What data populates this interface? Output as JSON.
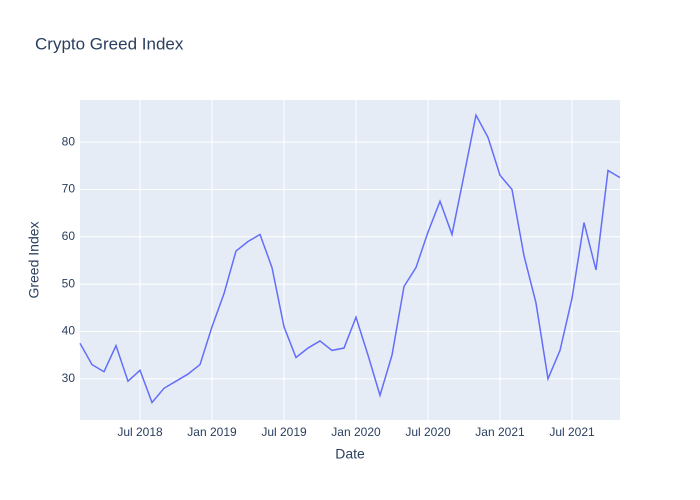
{
  "chart_data": {
    "type": "line",
    "title": "Crypto Greed Index",
    "x_label": "Date",
    "y_label": "Greed Index",
    "x": [
      "2018-02",
      "2018-03",
      "2018-04",
      "2018-05",
      "2018-06",
      "2018-07",
      "2018-08",
      "2018-09",
      "2018-10",
      "2018-11",
      "2018-12",
      "2019-01",
      "2019-02",
      "2019-03",
      "2019-04",
      "2019-05",
      "2019-06",
      "2019-07",
      "2019-08",
      "2019-09",
      "2019-10",
      "2019-11",
      "2019-12",
      "2020-01",
      "2020-02",
      "2020-03",
      "2020-04",
      "2020-05",
      "2020-06",
      "2020-07",
      "2020-08",
      "2020-09",
      "2020-10",
      "2020-11",
      "2020-12",
      "2021-01",
      "2021-02",
      "2021-03",
      "2021-04",
      "2021-05",
      "2021-06",
      "2021-07",
      "2021-08",
      "2021-09",
      "2021-10",
      "2021-11"
    ],
    "series": [
      {
        "name": "Greed Index",
        "color": "#636efa",
        "values": [
          37.5,
          33,
          31.5,
          37,
          29.5,
          31.8,
          25,
          28,
          29.5,
          31,
          33,
          41,
          48,
          57,
          59,
          60.5,
          53.5,
          41,
          34.5,
          36.5,
          38,
          36,
          36.5,
          43,
          35,
          26.5,
          35,
          49.5,
          53.5,
          61,
          67.5,
          60.5,
          73,
          85.7,
          81,
          73,
          70,
          56,
          46,
          30,
          36,
          47,
          63,
          53,
          74,
          72.5
        ]
      }
    ],
    "xlim": [
      "2018-02",
      "2021-11"
    ],
    "xticks": [
      {
        "value": "2018-07",
        "label": "Jul 2018"
      },
      {
        "value": "2019-01",
        "label": "Jan 2019"
      },
      {
        "value": "2019-07",
        "label": "Jul 2019"
      },
      {
        "value": "2020-01",
        "label": "Jan 2020"
      },
      {
        "value": "2020-07",
        "label": "Jul 2020"
      },
      {
        "value": "2021-01",
        "label": "Jan 2021"
      },
      {
        "value": "2021-07",
        "label": "Jul 2021"
      }
    ],
    "ylim": [
      21.3,
      88.9
    ],
    "yticks": [
      30,
      40,
      50,
      60,
      70,
      80
    ],
    "grid": true,
    "plot_background": "#e5ecf6"
  }
}
